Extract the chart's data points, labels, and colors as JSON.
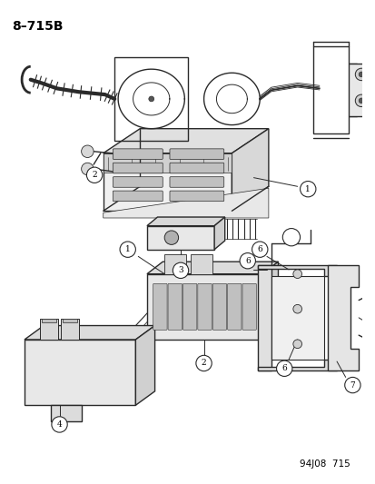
{
  "title_label": "8–715B",
  "footer_label": "94J08  715",
  "bg_color": "#ffffff",
  "title_fontsize": 10,
  "footer_fontsize": 7.5,
  "line_color": "#2a2a2a",
  "fig_width": 4.14,
  "fig_height": 5.33,
  "dpi": 100
}
